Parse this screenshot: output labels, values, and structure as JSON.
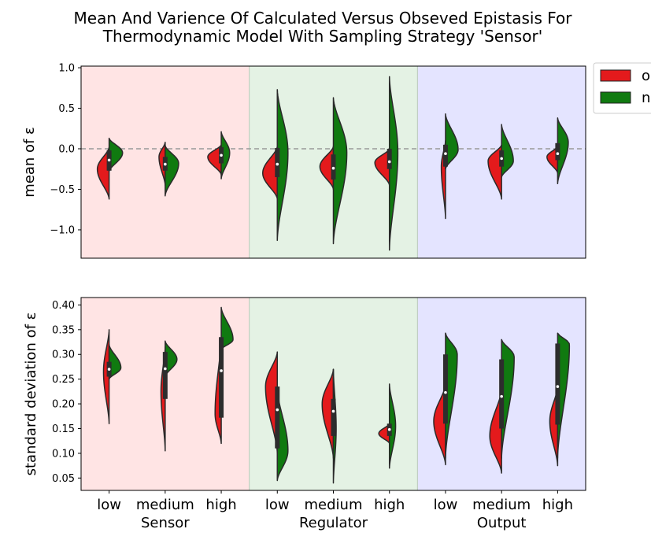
{
  "figure": {
    "title_line1": "Mean And Varience Of Calculated Versus Obseved Epistasis For",
    "title_line2": "Thermodynamic Model With Sampling Strategy 'Sensor'"
  },
  "legend": {
    "entries": [
      {
        "label": "o",
        "color": "#e41a1c"
      },
      {
        "label": "n",
        "color": "#107a10"
      }
    ]
  },
  "colors": {
    "calc": "#e41a1c",
    "obs": "#107a10",
    "sensor_bg": "#ffe4e4",
    "regulator_bg": "#e4f2e4",
    "output_bg": "#e4e4ff",
    "sensor_text": "#e41a1c",
    "regulator_text": "#118811",
    "output_text": "#1111cc"
  },
  "chart_data": [
    {
      "type": "violin",
      "ylabel": "mean of ε",
      "ylim": [
        -1.35,
        1.02
      ],
      "yticks": [
        "1.0",
        "0.5",
        "0.0",
        "−0.5",
        "−1.0"
      ],
      "ytick_values": [
        1.0,
        0.5,
        0.0,
        -0.5,
        -1.0
      ],
      "reference_line": 0.0,
      "groups": [
        "Sensor",
        "Regulator",
        "Output"
      ],
      "categories": [
        "low",
        "medium",
        "high",
        "low",
        "medium",
        "high",
        "low",
        "medium",
        "high"
      ],
      "violins": [
        {
          "left": {
            "min": -0.62,
            "max": 0.02,
            "mode": -0.25,
            "w": 0.42
          },
          "right": {
            "min": -0.28,
            "max": 0.13,
            "mode": -0.05,
            "w": 0.48
          },
          "median": -0.14,
          "q1": -0.27,
          "q3": -0.02
        },
        {
          "left": {
            "min": -0.45,
            "max": 0.08,
            "mode": -0.1,
            "w": 0.22
          },
          "right": {
            "min": -0.58,
            "max": 0.04,
            "mode": -0.18,
            "w": 0.48
          },
          "median": -0.19,
          "q1": -0.27,
          "q3": -0.1
        },
        {
          "left": {
            "min": -0.32,
            "max": 0.05,
            "mode": -0.1,
            "w": 0.48
          },
          "right": {
            "min": -0.37,
            "max": 0.21,
            "mode": -0.05,
            "w": 0.3
          },
          "median": -0.08,
          "q1": -0.18,
          "q3": 0.02
        },
        {
          "left": {
            "min": -0.62,
            "max": 0.03,
            "mode": -0.3,
            "w": 0.52
          },
          "right": {
            "min": -1.13,
            "max": 0.73,
            "mode": -0.05,
            "w": 0.38
          },
          "median": -0.19,
          "q1": -0.35,
          "q3": 0.01
        },
        {
          "left": {
            "min": -0.5,
            "max": 0.03,
            "mode": -0.22,
            "w": 0.48
          },
          "right": {
            "min": -1.17,
            "max": 0.63,
            "mode": -0.05,
            "w": 0.48
          },
          "median": -0.24,
          "q1": -0.38,
          "q3": -0.07
        },
        {
          "left": {
            "min": -0.45,
            "max": 0.0,
            "mode": -0.17,
            "w": 0.52
          },
          "right": {
            "min": -1.25,
            "max": 0.89,
            "mode": -0.05,
            "w": 0.3
          },
          "median": -0.16,
          "q1": -0.25,
          "q3": 0.0
        },
        {
          "left": {
            "min": -0.86,
            "max": 0.1,
            "mode": -0.22,
            "w": 0.15
          },
          "right": {
            "min": -0.25,
            "max": 0.43,
            "mode": -0.01,
            "w": 0.45
          },
          "median": -0.06,
          "q1": -0.22,
          "q3": 0.05
        },
        {
          "left": {
            "min": -0.62,
            "max": 0.05,
            "mode": -0.15,
            "w": 0.48
          },
          "right": {
            "min": -0.35,
            "max": 0.3,
            "mode": -0.15,
            "w": 0.42
          },
          "median": -0.12,
          "q1": -0.22,
          "q3": -0.02
        },
        {
          "left": {
            "min": -0.3,
            "max": 0.03,
            "mode": -0.1,
            "w": 0.38
          },
          "right": {
            "min": -0.43,
            "max": 0.38,
            "mode": 0.08,
            "w": 0.38
          },
          "median": -0.06,
          "q1": -0.14,
          "q3": 0.07
        }
      ]
    },
    {
      "type": "violin",
      "ylabel": "standard deviation of ε",
      "ylim": [
        0.025,
        0.415
      ],
      "yticks": [
        "0.40",
        "0.35",
        "0.30",
        "0.25",
        "0.20",
        "0.15",
        "0.10",
        "0.05"
      ],
      "ytick_values": [
        0.4,
        0.35,
        0.3,
        0.25,
        0.2,
        0.15,
        0.1,
        0.05
      ],
      "groups": [
        "Sensor",
        "Regulator",
        "Output"
      ],
      "categories": [
        "low",
        "medium",
        "high",
        "low",
        "medium",
        "high",
        "low",
        "medium",
        "high"
      ],
      "violins": [
        {
          "left": {
            "min": 0.16,
            "max": 0.35,
            "mode": 0.265,
            "w": 0.2
          },
          "right": {
            "min": 0.25,
            "max": 0.32,
            "mode": 0.273,
            "w": 0.42
          },
          "median": 0.27,
          "q1": 0.255,
          "q3": 0.285
        },
        {
          "left": {
            "min": 0.105,
            "max": 0.315,
            "mode": 0.225,
            "w": 0.15
          },
          "right": {
            "min": 0.255,
            "max": 0.327,
            "mode": 0.29,
            "w": 0.42
          },
          "median": 0.271,
          "q1": 0.21,
          "q3": 0.305
        },
        {
          "left": {
            "min": 0.12,
            "max": 0.335,
            "mode": 0.18,
            "w": 0.22
          },
          "right": {
            "min": 0.31,
            "max": 0.395,
            "mode": 0.33,
            "w": 0.42
          },
          "median": 0.267,
          "q1": 0.172,
          "q3": 0.335
        },
        {
          "left": {
            "min": 0.1,
            "max": 0.305,
            "mode": 0.235,
            "w": 0.42
          },
          "right": {
            "min": 0.045,
            "max": 0.23,
            "mode": 0.105,
            "w": 0.38
          },
          "median": 0.188,
          "q1": 0.11,
          "q3": 0.235
        },
        {
          "left": {
            "min": 0.09,
            "max": 0.27,
            "mode": 0.2,
            "w": 0.4
          },
          "right": {
            "min": 0.04,
            "max": 0.27,
            "mode": 0.15,
            "w": 0.1
          },
          "median": 0.185,
          "q1": 0.135,
          "q3": 0.21
        },
        {
          "left": {
            "min": 0.12,
            "max": 0.16,
            "mode": 0.14,
            "w": 0.38
          },
          "right": {
            "min": 0.07,
            "max": 0.24,
            "mode": 0.155,
            "w": 0.22
          },
          "median": 0.148,
          "q1": 0.135,
          "q3": 0.16
        },
        {
          "left": {
            "min": 0.077,
            "max": 0.24,
            "mode": 0.165,
            "w": 0.42
          },
          "right": {
            "min": 0.09,
            "max": 0.343,
            "mode": 0.3,
            "w": 0.42
          },
          "median": 0.223,
          "q1": 0.16,
          "q3": 0.3
        },
        {
          "left": {
            "min": 0.06,
            "max": 0.23,
            "mode": 0.135,
            "w": 0.42
          },
          "right": {
            "min": 0.09,
            "max": 0.33,
            "mode": 0.295,
            "w": 0.45
          },
          "median": 0.215,
          "q1": 0.15,
          "q3": 0.29
        },
        {
          "left": {
            "min": 0.075,
            "max": 0.235,
            "mode": 0.165,
            "w": 0.28
          },
          "right": {
            "min": 0.09,
            "max": 0.343,
            "mode": 0.32,
            "w": 0.42
          },
          "median": 0.235,
          "q1": 0.158,
          "q3": 0.322
        }
      ]
    }
  ]
}
